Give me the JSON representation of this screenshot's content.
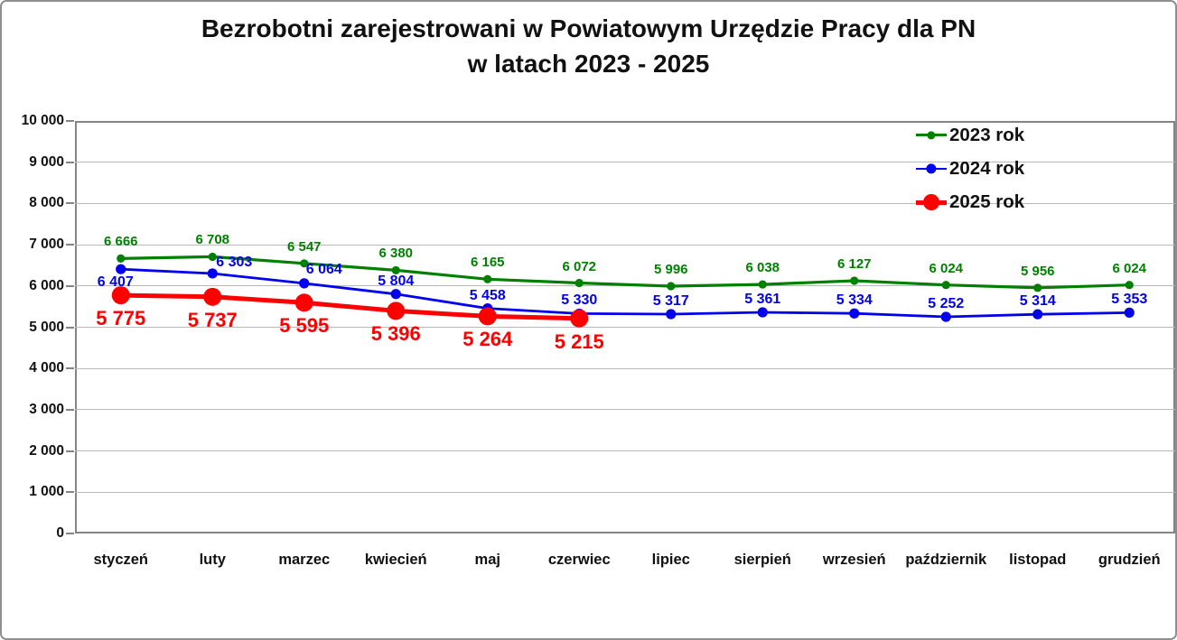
{
  "title": {
    "line1": "Bezrobotni zarejestrowani w Powiatowym Urzędzie Pracy dla PN",
    "line2": "w latach 2023 - 2025"
  },
  "chart_data": {
    "type": "line",
    "title": "Bezrobotni zarejestrowani w Powiatowym Urzędzie Pracy dla PN w latach 2023 - 2025",
    "title_lines": [
      "Bezrobotni zarejestrowani w Powiatowym Urzędzie Pracy dla PN",
      "w latach 2023 - 2025"
    ],
    "categories": [
      "styczeń",
      "luty",
      "marzec",
      "kwiecień",
      "maj",
      "czerwiec",
      "lipiec",
      "sierpień",
      "wrzesień",
      "październik",
      "listopad",
      "grudzień"
    ],
    "y_ticks": [
      "10 000",
      "9 000",
      "8 000",
      "7 000",
      "6 000",
      "5 000",
      "4 000",
      "3 000",
      "2 000",
      "1 000",
      "0"
    ],
    "ylim": [
      0,
      10000
    ],
    "grid": true,
    "legend_position": "top-right-inside",
    "series": [
      {
        "name": "2023 rok",
        "color": "#008000",
        "values": [
          6666,
          6708,
          6547,
          6380,
          6165,
          6072,
          5996,
          6038,
          6127,
          6024,
          5956,
          6024
        ],
        "labels": [
          "6 666",
          "6 708",
          "6 547",
          "6 380",
          "6 165",
          "6 072",
          "5 996",
          "6 038",
          "6 127",
          "6 024",
          "5 956",
          "6 024"
        ]
      },
      {
        "name": "2024 rok",
        "color": "#0000EE",
        "values": [
          6407,
          6303,
          6064,
          5804,
          5458,
          5330,
          5317,
          5361,
          5334,
          5252,
          5314,
          5353
        ],
        "labels": [
          "6 407",
          "6 303",
          "6 064",
          "5 804",
          "5 458",
          "5 330",
          "5 317",
          "5 361",
          "5 334",
          "5 252",
          "5 314",
          "5 353"
        ]
      },
      {
        "name": "2025 rok",
        "color": "#FF0000",
        "values": [
          5775,
          5737,
          5595,
          5396,
          5264,
          5215
        ],
        "labels": [
          "5 775",
          "5 737",
          "5 595",
          "5 396",
          "5 264",
          "5 215"
        ]
      }
    ]
  }
}
